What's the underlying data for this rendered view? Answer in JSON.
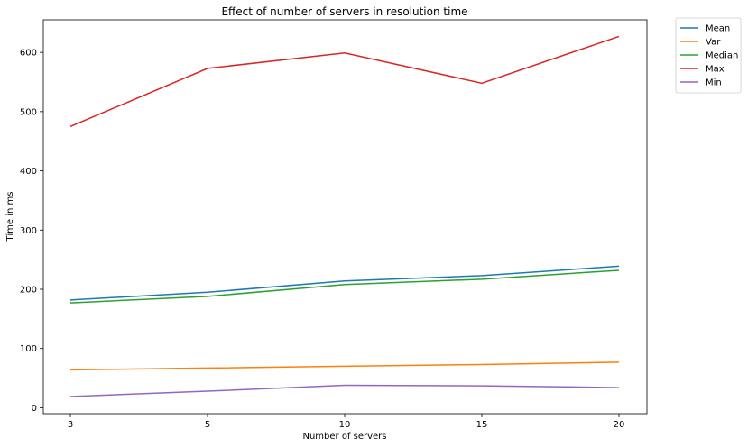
{
  "chart_data": {
    "type": "line",
    "title": "Effect of number of servers in resolution time",
    "xlabel": "Number of servers",
    "ylabel": "Time in ms",
    "x_ticks": [
      "3",
      "5",
      "10",
      "15",
      "20"
    ],
    "y_ticks": [
      0,
      100,
      200,
      300,
      400,
      500,
      600
    ],
    "ylim": [
      -10,
      655
    ],
    "grid": false,
    "legend_position": "outside-top-right",
    "series": [
      {
        "name": "Mean",
        "color": "#1f77b4",
        "values": [
          182,
          195,
          214,
          223,
          239
        ]
      },
      {
        "name": "Var",
        "color": "#ff7f0e",
        "values": [
          64,
          67,
          70,
          73,
          77
        ]
      },
      {
        "name": "Median",
        "color": "#2ca02c",
        "values": [
          177,
          188,
          208,
          217,
          232
        ]
      },
      {
        "name": "Max",
        "color": "#d62728",
        "values": [
          475,
          573,
          599,
          548,
          627
        ]
      },
      {
        "name": "Min",
        "color": "#9467bd",
        "values": [
          19,
          28,
          38,
          37,
          34
        ]
      }
    ]
  }
}
